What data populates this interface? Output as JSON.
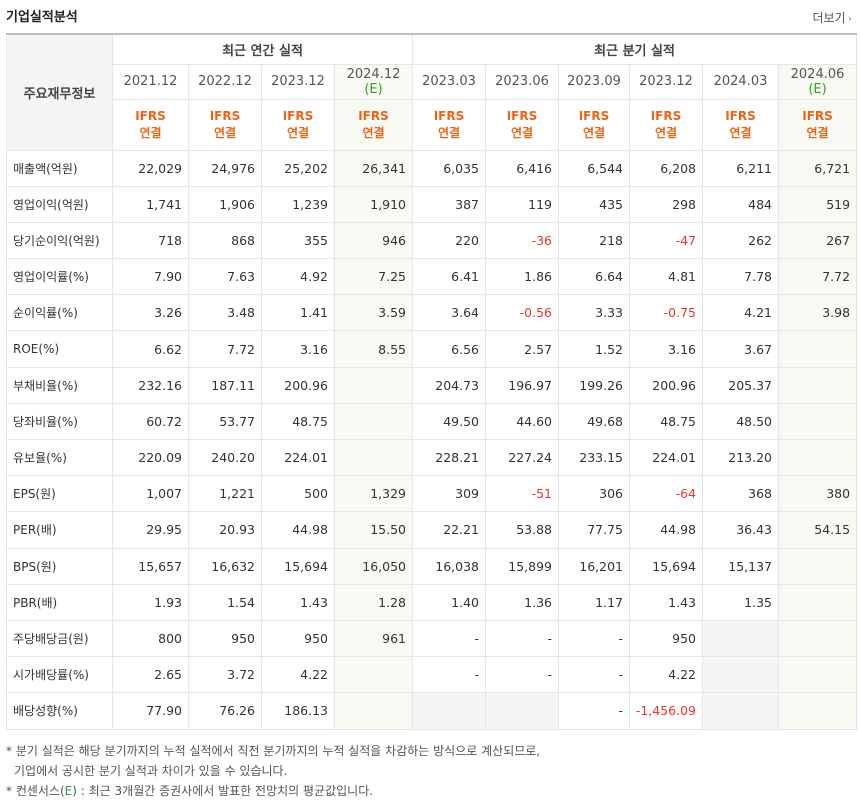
{
  "header": {
    "title": "기업실적분석",
    "more_label": "더보기"
  },
  "table": {
    "label_header": "주요재무정보",
    "group_annual": "최근 연간 실적",
    "group_quarter": "최근 분기 실적",
    "periods": [
      {
        "line1": "2021.12",
        "est": false
      },
      {
        "line1": "2022.12",
        "est": false
      },
      {
        "line1": "2023.12",
        "est": false
      },
      {
        "line1": "2024.12",
        "line2": "(E)",
        "est": true
      },
      {
        "line1": "2023.03",
        "est": false
      },
      {
        "line1": "2023.06",
        "est": false
      },
      {
        "line1": "2023.09",
        "est": false
      },
      {
        "line1": "2023.12",
        "est": false
      },
      {
        "line1": "2024.03",
        "est": false
      },
      {
        "line1": "2024.06",
        "line2": "(E)",
        "est": true
      }
    ],
    "standard": {
      "line1": "IFRS",
      "line2": "연결"
    },
    "rows": [
      {
        "label": "매출액(억원)",
        "values": [
          "22,029",
          "24,976",
          "25,202",
          "26,341",
          "6,035",
          "6,416",
          "6,544",
          "6,208",
          "6,211",
          "6,721"
        ]
      },
      {
        "label": "영업이익(억원)",
        "values": [
          "1,741",
          "1,906",
          "1,239",
          "1,910",
          "387",
          "119",
          "435",
          "298",
          "484",
          "519"
        ]
      },
      {
        "label": "당기순이익(억원)",
        "values": [
          "718",
          "868",
          "355",
          "946",
          "220",
          "-36",
          "218",
          "-47",
          "262",
          "267"
        ]
      },
      {
        "label": "영업이익률(%)",
        "values": [
          "7.90",
          "7.63",
          "4.92",
          "7.25",
          "6.41",
          "1.86",
          "6.64",
          "4.81",
          "7.78",
          "7.72"
        ],
        "group_start": true
      },
      {
        "label": "순이익률(%)",
        "values": [
          "3.26",
          "3.48",
          "1.41",
          "3.59",
          "3.64",
          "-0.56",
          "3.33",
          "-0.75",
          "4.21",
          "3.98"
        ]
      },
      {
        "label": "ROE(%)",
        "values": [
          "6.62",
          "7.72",
          "3.16",
          "8.55",
          "6.56",
          "2.57",
          "1.52",
          "3.16",
          "3.67",
          ""
        ]
      },
      {
        "label": "부채비율(%)",
        "values": [
          "232.16",
          "187.11",
          "200.96",
          "",
          "204.73",
          "196.97",
          "199.26",
          "200.96",
          "205.37",
          ""
        ],
        "group_start": true
      },
      {
        "label": "당좌비율(%)",
        "values": [
          "60.72",
          "53.77",
          "48.75",
          "",
          "49.50",
          "44.60",
          "49.68",
          "48.75",
          "48.50",
          ""
        ]
      },
      {
        "label": "유보율(%)",
        "values": [
          "220.09",
          "240.20",
          "224.01",
          "",
          "228.21",
          "227.24",
          "233.15",
          "224.01",
          "213.20",
          ""
        ]
      },
      {
        "label": "EPS(원)",
        "values": [
          "1,007",
          "1,221",
          "500",
          "1,329",
          "309",
          "-51",
          "306",
          "-64",
          "368",
          "380"
        ],
        "group_start": true
      },
      {
        "label": "PER(배)",
        "values": [
          "29.95",
          "20.93",
          "44.98",
          "15.50",
          "22.21",
          "53.88",
          "77.75",
          "44.98",
          "36.43",
          "54.15"
        ]
      },
      {
        "label": "BPS(원)",
        "values": [
          "15,657",
          "16,632",
          "15,694",
          "16,050",
          "16,038",
          "15,899",
          "16,201",
          "15,694",
          "15,137",
          ""
        ]
      },
      {
        "label": "PBR(배)",
        "values": [
          "1.93",
          "1.54",
          "1.43",
          "1.28",
          "1.40",
          "1.36",
          "1.17",
          "1.43",
          "1.35",
          ""
        ]
      },
      {
        "label": "주당배당금(원)",
        "values": [
          "800",
          "950",
          "950",
          "961",
          "-",
          "-",
          "-",
          "950",
          "",
          ""
        ],
        "group_start": true,
        "blank_cols": [
          8
        ]
      },
      {
        "label": "시가배당률(%)",
        "values": [
          "2.65",
          "3.72",
          "4.22",
          "",
          "-",
          "-",
          "-",
          "4.22",
          "",
          ""
        ],
        "blank_cols": [
          8
        ]
      },
      {
        "label": "배당성향(%)",
        "values": [
          "77.90",
          "76.26",
          "186.13",
          "",
          "",
          "",
          "-",
          "-1,456.09",
          "",
          ""
        ],
        "blank_cols": [
          4,
          5,
          8
        ]
      }
    ]
  },
  "footnotes": {
    "line1": "* 분기 실적은 해당 분기까지의 누적 실적에서 직전 분기까지의 누적 실적을 차감하는 방식으로 계산되므로,",
    "line2": "기업에서 공시한 분기 실적과 차이가 있을 수 있습니다.",
    "line3_pre": "* 컨센서스(",
    "line3_e": "E",
    "line3_post": ") : 최근 3개월간 증권사에서 발표한 전망치의 평균값입니다."
  },
  "colors": {
    "accent_orange": "#e8651a",
    "estimate_green": "#36a02c",
    "negative_red": "#e33333"
  }
}
